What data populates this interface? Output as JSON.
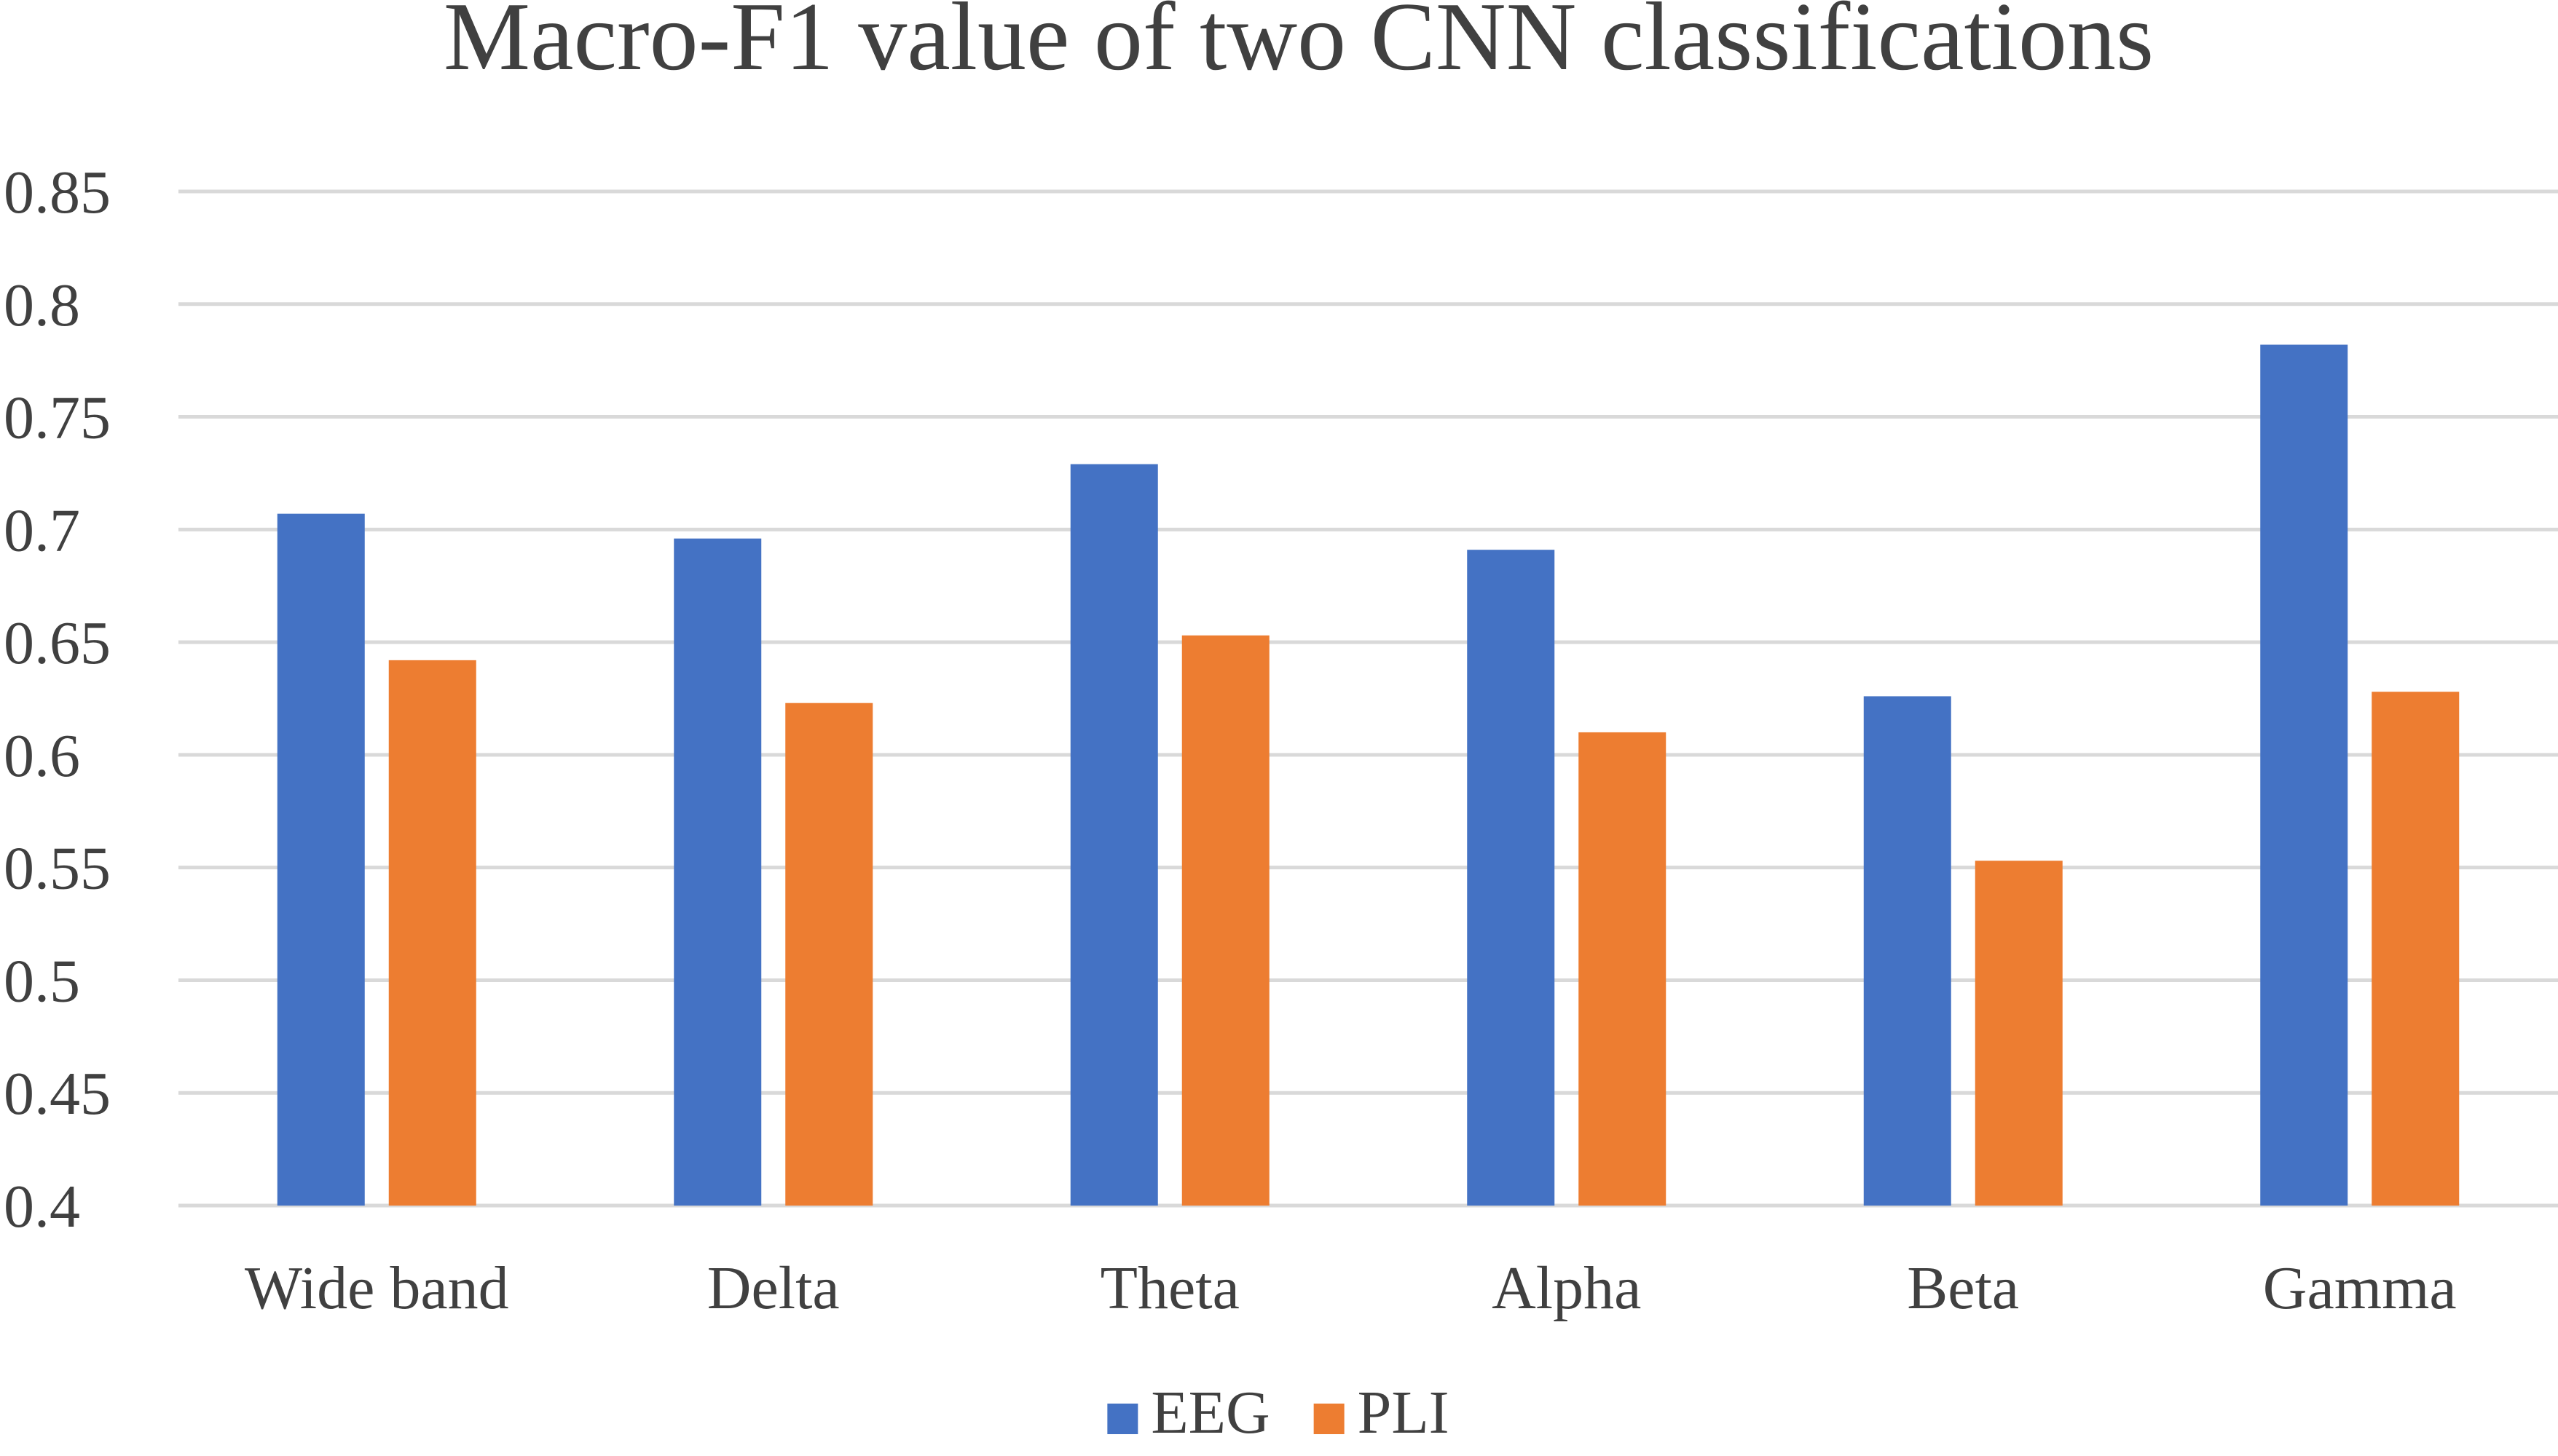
{
  "chart_data": {
    "type": "bar",
    "title": "Macro-F1 value of two CNN classifications",
    "xlabel": "",
    "ylabel": "",
    "ylim": [
      0.4,
      0.85
    ],
    "yticks": [
      0.4,
      0.45,
      0.5,
      0.55,
      0.6,
      0.65,
      0.7,
      0.75,
      0.8,
      0.85
    ],
    "ytick_labels": [
      "0.4",
      "0.45",
      "0.5",
      "0.55",
      "0.6",
      "0.65",
      "0.7",
      "0.75",
      "0.8",
      "0.85"
    ],
    "grid": true,
    "legend_position": "bottom",
    "categories": [
      "Wide band",
      "Delta",
      "Theta",
      "Alpha",
      "Beta",
      "Gamma"
    ],
    "series": [
      {
        "name": "EEG",
        "color": "#4472C4",
        "values": [
          0.707,
          0.696,
          0.729,
          0.691,
          0.626,
          0.782
        ]
      },
      {
        "name": "PLI",
        "color": "#ED7D31",
        "values": [
          0.642,
          0.623,
          0.653,
          0.61,
          0.553,
          0.628
        ]
      }
    ]
  }
}
